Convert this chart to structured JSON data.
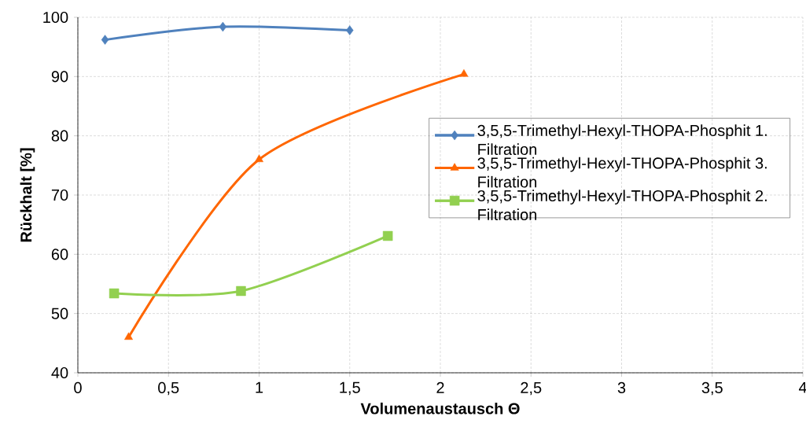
{
  "chart_data": {
    "type": "line",
    "xlabel": "Volumenaustausch Θ",
    "ylabel": "Rückhalt [%]",
    "xlim": [
      0,
      4
    ],
    "ylim": [
      40,
      100
    ],
    "xticks": [
      0,
      {
        "value": 0.5,
        "label": "0,5"
      },
      1,
      {
        "value": 1.5,
        "label": "1,5"
      },
      2,
      {
        "value": 2.5,
        "label": "2,5"
      },
      3,
      {
        "value": 3.5,
        "label": "3,5"
      },
      4
    ],
    "yticks": [
      40,
      50,
      60,
      70,
      80,
      90,
      100
    ],
    "grid": true,
    "legend": "right",
    "line_style": "solid",
    "series": [
      {
        "name": "3,5,5-Trimethyl-Hexyl-THOPA-Phosphit 1. Filtration",
        "color": "#4f81bd",
        "marker": "diamond",
        "x": [
          0.15,
          0.8,
          1.5
        ],
        "values": [
          96.2,
          98.4,
          97.8
        ]
      },
      {
        "name": "3,5,5-Trimethyl-Hexyl-THOPA-Phosphit 3. Filtration",
        "color": "#ff6600",
        "marker": "triangle",
        "x": [
          0.28,
          1.0,
          2.13
        ],
        "values": [
          46.0,
          76.0,
          90.4
        ]
      },
      {
        "name": "3,5,5-Trimethyl-Hexyl-THOPA-Phosphit 2. Filtration",
        "color": "#92d050",
        "marker": "square",
        "x": [
          0.2,
          0.9,
          1.71
        ],
        "values": [
          53.4,
          53.8,
          63.1
        ]
      }
    ]
  }
}
